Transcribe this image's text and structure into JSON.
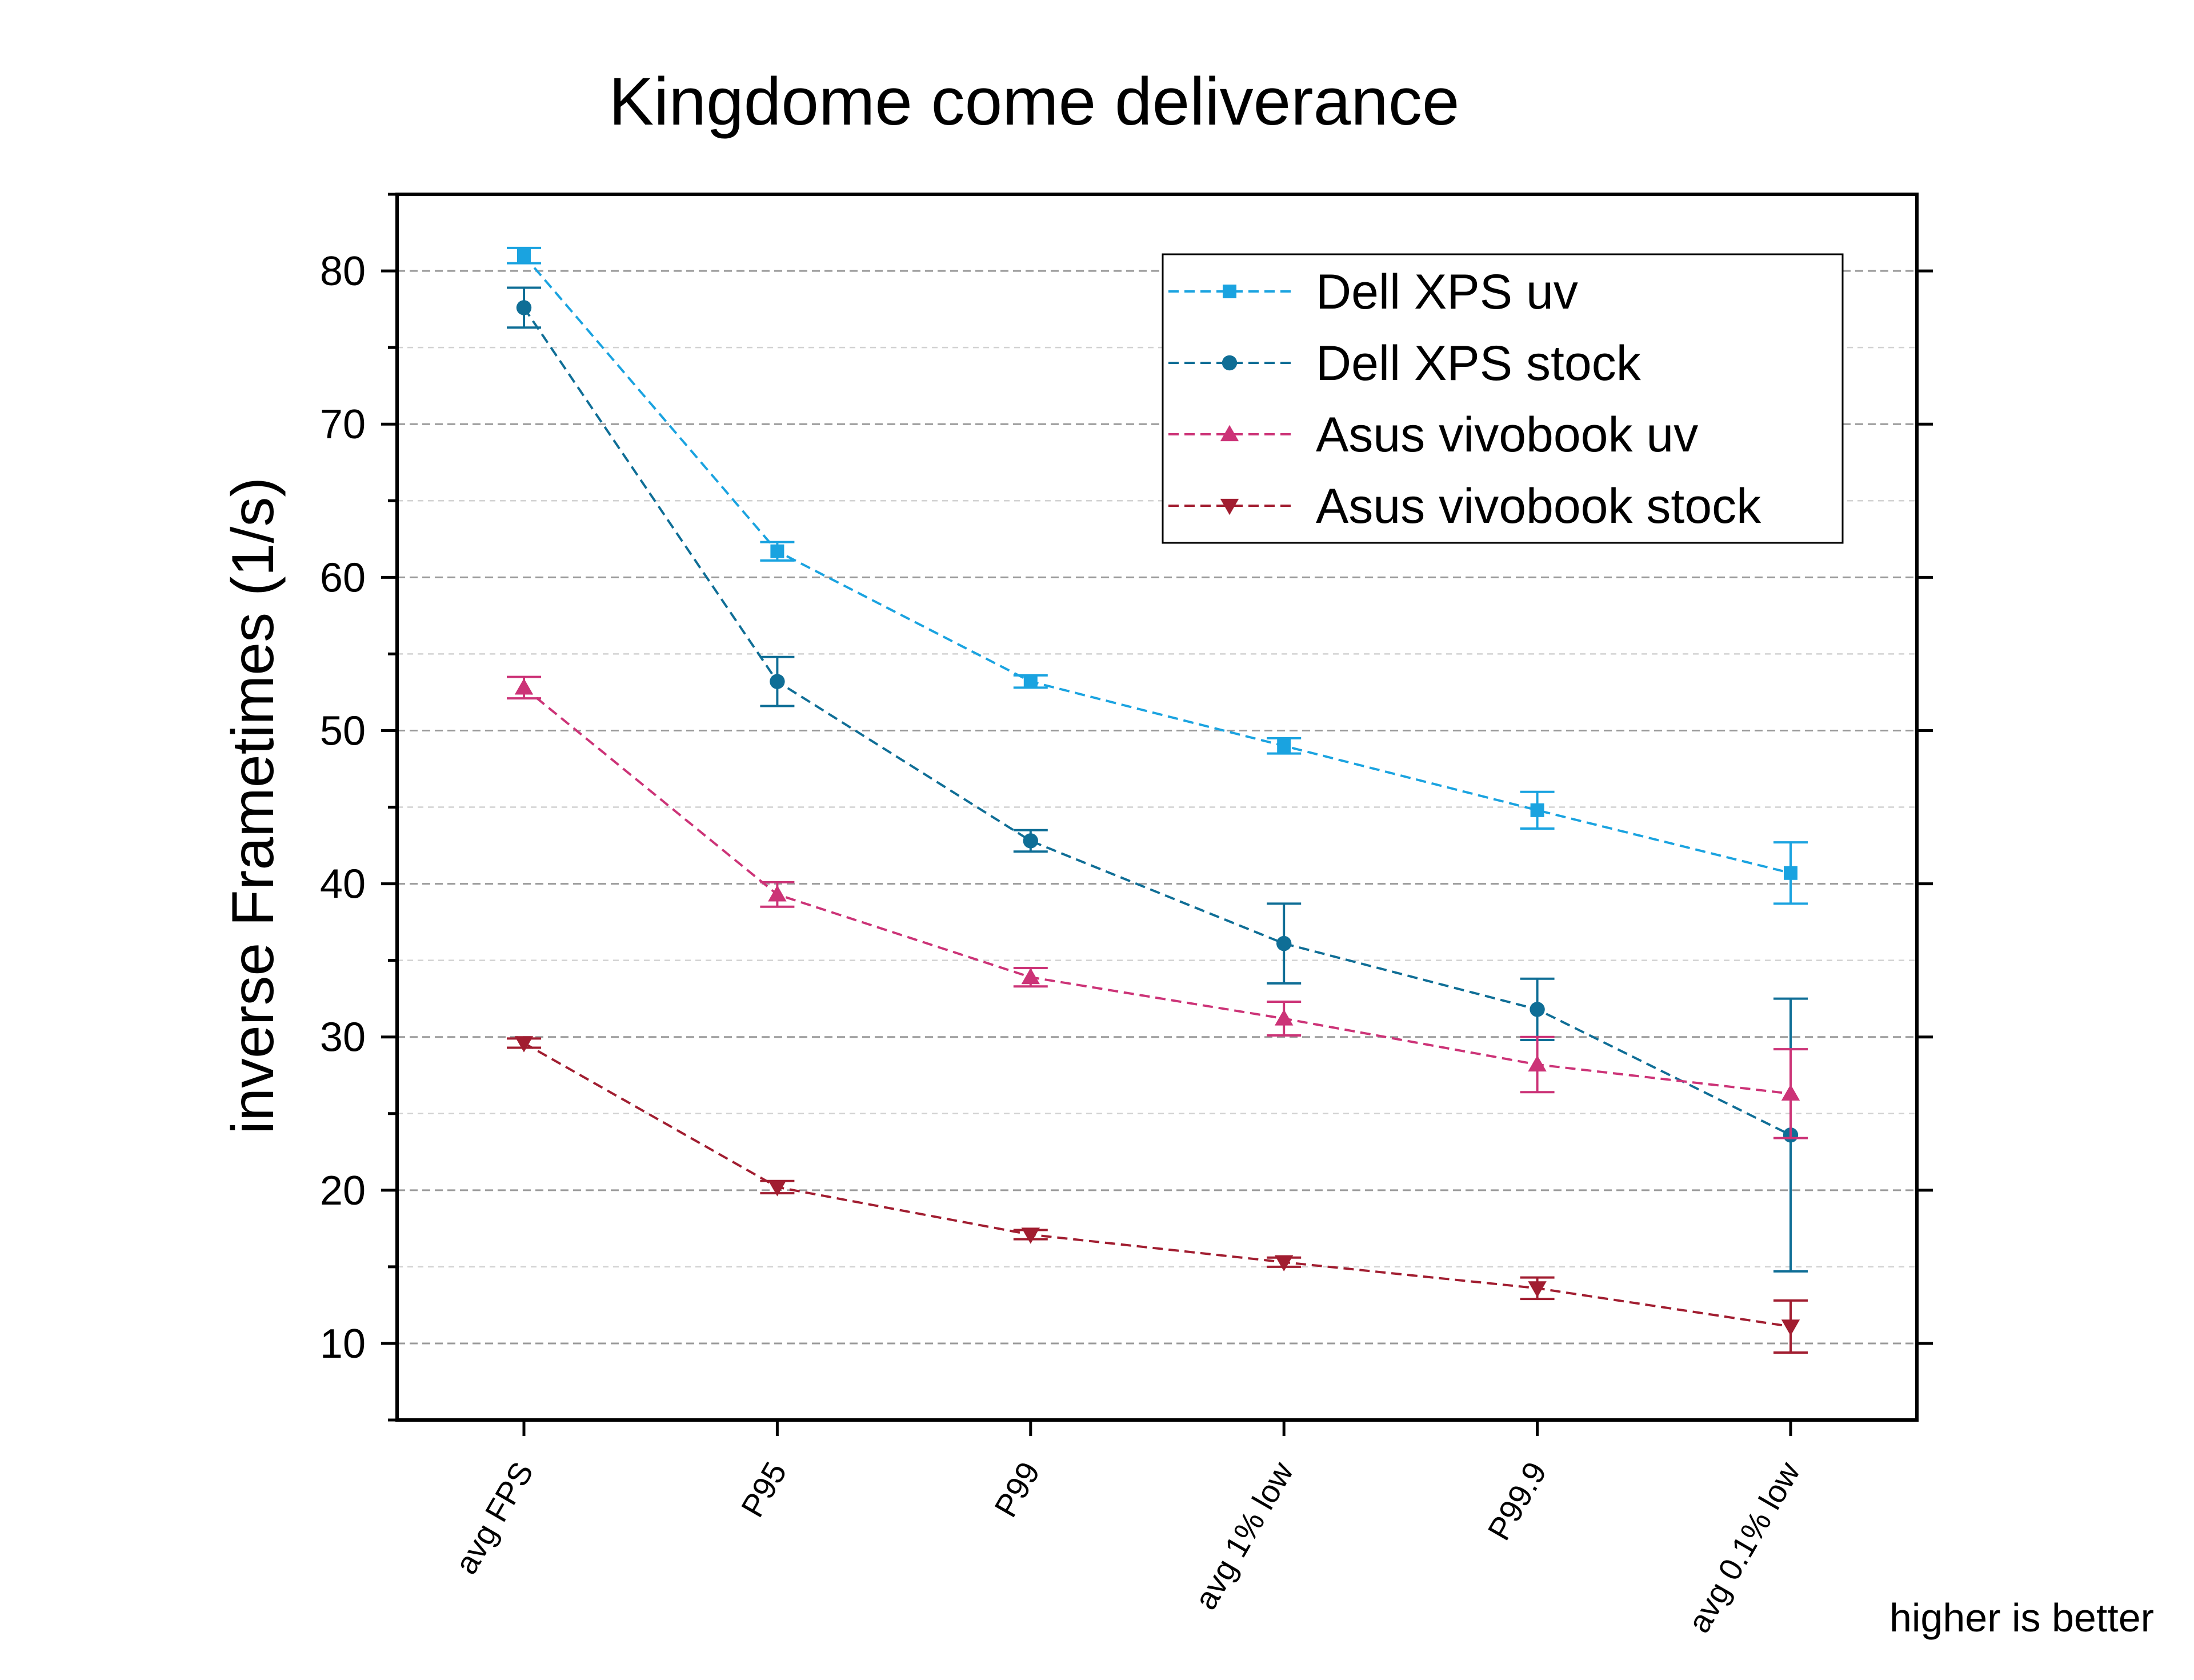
{
  "chart_data": {
    "type": "line",
    "title": "Kingdome come deliverance",
    "xlabel": "",
    "ylabel": "inverse Frametimes (1/s)",
    "categories": [
      "avg FPS",
      "P95",
      "P99",
      "avg 1% low",
      "P99.9",
      "avg 0.1% low"
    ],
    "ylim": [
      5,
      85
    ],
    "yticks": [
      10,
      20,
      30,
      40,
      50,
      60,
      70,
      80
    ],
    "grid": true,
    "legend_position": "top-right",
    "note": "higher is better",
    "series": [
      {
        "name": "Dell XPS uv",
        "color": "#1AA3E0",
        "marker": "square",
        "values": [
          81.0,
          61.7,
          53.2,
          49.0,
          44.8,
          40.7
        ],
        "errors": [
          0.5,
          0.6,
          0.4,
          0.5,
          1.2,
          2.0
        ]
      },
      {
        "name": "Dell XPS stock",
        "color": "#0F6E96",
        "marker": "circle",
        "values": [
          77.6,
          53.2,
          42.8,
          36.1,
          31.8,
          23.6
        ],
        "errors": [
          1.3,
          1.6,
          0.7,
          2.6,
          2.0,
          8.9
        ]
      },
      {
        "name": "Asus vivobook uv",
        "color": "#CC3377",
        "marker": "triangle-up",
        "values": [
          52.8,
          39.3,
          33.9,
          31.2,
          28.2,
          26.3
        ],
        "errors": [
          0.7,
          0.8,
          0.6,
          1.1,
          1.8,
          2.9
        ]
      },
      {
        "name": "Asus vivobook stock",
        "color": "#A11D30",
        "marker": "triangle-down",
        "values": [
          29.6,
          20.2,
          17.1,
          15.3,
          13.6,
          11.1
        ],
        "errors": [
          0.3,
          0.4,
          0.3,
          0.3,
          0.7,
          1.7
        ]
      }
    ]
  }
}
